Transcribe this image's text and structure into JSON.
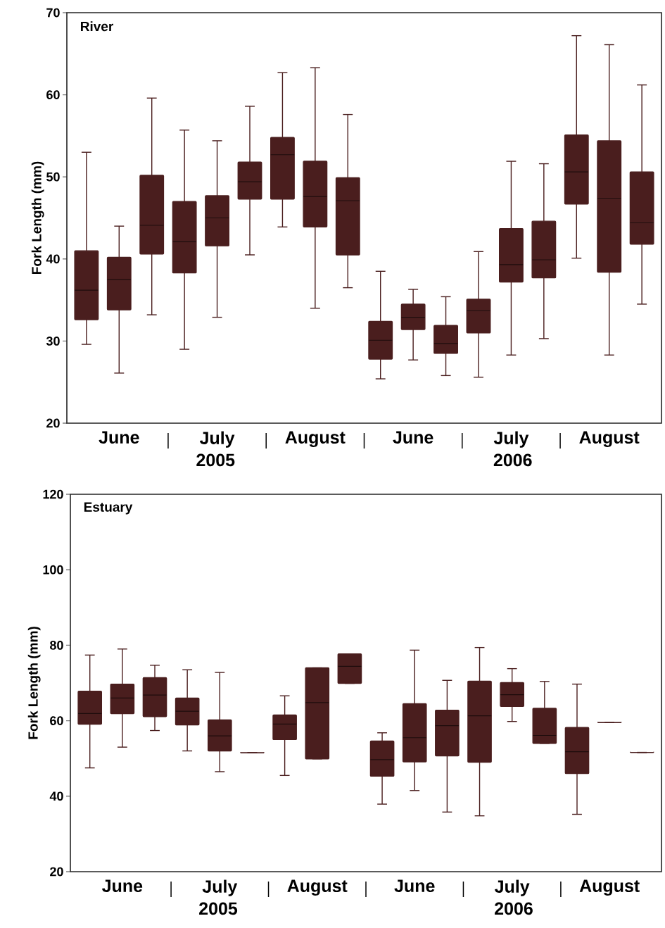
{
  "chart_data": [
    {
      "type": "box",
      "title": "River",
      "ylabel": "Fork Length (mm)",
      "categories": [
        null,
        "June",
        null,
        null,
        "July",
        null,
        null,
        "August",
        null,
        null,
        "June",
        null,
        null,
        "July",
        null,
        null,
        "August",
        null
      ],
      "ylim": [
        20,
        70
      ],
      "yticks": [
        20,
        30,
        40,
        50,
        60,
        70
      ],
      "annotations": [
        "2005",
        "2006"
      ],
      "series": [
        {
          "color": "#4a1e1e",
          "boxes": [
            {
              "low": 29.6,
              "q1": 32.6,
              "median": 36.2,
              "q3": 41.0,
              "high": 53.0
            },
            {
              "low": 26.1,
              "q1": 33.8,
              "median": 37.5,
              "q3": 40.2,
              "high": 44.0
            },
            {
              "low": 33.2,
              "q1": 40.6,
              "median": 44.1,
              "q3": 50.2,
              "high": 59.6
            },
            {
              "low": 29.0,
              "q1": 38.3,
              "median": 42.1,
              "q3": 47.0,
              "high": 55.7
            },
            {
              "low": 32.9,
              "q1": 41.6,
              "median": 45.0,
              "q3": 47.7,
              "high": 54.4
            },
            {
              "low": 40.5,
              "q1": 47.3,
              "median": 49.4,
              "q3": 51.8,
              "high": 58.6
            },
            {
              "low": 43.9,
              "q1": 47.3,
              "median": 52.7,
              "q3": 54.8,
              "high": 62.7
            },
            {
              "low": 34.0,
              "q1": 43.9,
              "median": 47.6,
              "q3": 51.9,
              "high": 63.3
            },
            {
              "low": 36.5,
              "q1": 40.5,
              "median": 47.1,
              "q3": 49.9,
              "high": 57.6
            },
            {
              "low": 25.4,
              "q1": 27.8,
              "median": 30.1,
              "q3": 32.4,
              "high": 38.5
            },
            {
              "low": 27.7,
              "q1": 31.4,
              "median": 32.9,
              "q3": 34.5,
              "high": 36.3
            },
            {
              "low": 25.8,
              "q1": 28.5,
              "median": 29.7,
              "q3": 31.9,
              "high": 35.4
            },
            {
              "low": 25.6,
              "q1": 31.0,
              "median": 33.7,
              "q3": 35.1,
              "high": 40.9
            },
            {
              "low": 28.3,
              "q1": 37.2,
              "median": 39.3,
              "q3": 43.7,
              "high": 51.9
            },
            {
              "low": 30.3,
              "q1": 37.7,
              "median": 39.9,
              "q3": 44.6,
              "high": 51.6
            },
            {
              "low": 40.1,
              "q1": 46.7,
              "median": 50.6,
              "q3": 55.1,
              "high": 67.2
            },
            {
              "low": 28.3,
              "q1": 38.4,
              "median": 47.4,
              "q3": 54.4,
              "high": 66.1
            },
            {
              "low": 34.5,
              "q1": 41.8,
              "median": 44.4,
              "q3": 50.6,
              "high": 61.2
            }
          ]
        }
      ]
    },
    {
      "type": "box",
      "title": "Estuary",
      "ylabel": "Fork Length (mm)",
      "categories": [
        null,
        "June",
        null,
        null,
        "July",
        null,
        null,
        "August",
        null,
        null,
        "June",
        null,
        null,
        "July",
        null,
        null,
        "August",
        null
      ],
      "ylim": [
        20,
        120
      ],
      "yticks": [
        20,
        40,
        60,
        80,
        100,
        120
      ],
      "annotations": [
        "2005",
        "2006"
      ],
      "series": [
        {
          "color": "#4a1e1e",
          "boxes": [
            {
              "low": 47.5,
              "q1": 59.1,
              "median": 61.9,
              "q3": 67.8,
              "high": 77.4
            },
            {
              "low": 53.0,
              "q1": 61.9,
              "median": 66.0,
              "q3": 69.7,
              "high": 79.0
            },
            {
              "low": 57.4,
              "q1": 61.1,
              "median": 66.8,
              "q3": 71.4,
              "high": 74.7
            },
            {
              "low": 52.0,
              "q1": 58.9,
              "median": 62.5,
              "q3": 66.0,
              "high": 73.5
            },
            {
              "low": 46.5,
              "q1": 52.0,
              "median": 56.0,
              "q3": 60.2,
              "high": 72.8
            },
            {
              "low": 51.5,
              "q1": 51.5,
              "median": 51.5,
              "q3": 51.5,
              "high": 51.5
            },
            {
              "low": 45.5,
              "q1": 55.0,
              "median": 59.1,
              "q3": 61.5,
              "high": 66.6
            },
            {
              "low": 49.9,
              "q1": 49.9,
              "median": 64.8,
              "q3": 74.0,
              "high": 74.0
            },
            {
              "low": 69.9,
              "q1": 69.9,
              "median": 74.4,
              "q3": 77.7,
              "high": 77.7
            },
            {
              "low": 37.9,
              "q1": 45.3,
              "median": 49.7,
              "q3": 54.6,
              "high": 56.8
            },
            {
              "low": 41.5,
              "q1": 49.1,
              "median": 55.5,
              "q3": 64.5,
              "high": 78.7
            },
            {
              "low": 35.8,
              "q1": 50.7,
              "median": 58.7,
              "q3": 62.8,
              "high": 70.7
            },
            {
              "low": 34.8,
              "q1": 49.0,
              "median": 61.3,
              "q3": 70.5,
              "high": 79.4
            },
            {
              "low": 59.8,
              "q1": 63.8,
              "median": 66.9,
              "q3": 70.1,
              "high": 73.8
            },
            {
              "low": 54.0,
              "q1": 54.0,
              "median": 56.1,
              "q3": 63.3,
              "high": 70.4
            },
            {
              "low": 35.2,
              "q1": 46.0,
              "median": 51.8,
              "q3": 58.2,
              "high": 69.7
            },
            {
              "low": 59.5,
              "q1": 59.5,
              "median": 59.5,
              "q3": 59.5,
              "high": 59.5
            },
            {
              "low": 51.6,
              "q1": 51.6,
              "median": 51.6,
              "q3": 51.6,
              "high": 51.6
            }
          ]
        }
      ]
    }
  ]
}
